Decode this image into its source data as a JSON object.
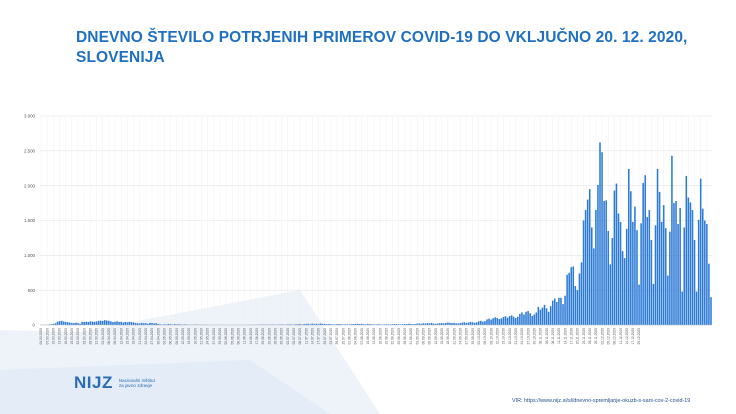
{
  "page": {
    "title": "DNEVNO ŠTEVILO POTRJENIH PRIMEROV COVID-19 DO VKLJUČNO 20. 12. 2020, SLOVENIJA"
  },
  "logo": {
    "mark": "NIJZ",
    "line1": "Nacionalni inštitut",
    "line2": "za javno zdravje"
  },
  "source": {
    "text": "VIR: https://www.nijz.si/sl/dnevno-spremljanje-okuzb-s-sars-cov-2-covid-19"
  },
  "colors": {
    "bar": "#2e7bd6",
    "title": "#1f6fc2",
    "grid": "#e3e3e3",
    "background_shape": "#eef3fa"
  },
  "chart_data": {
    "type": "bar",
    "title": "",
    "xlabel": "",
    "ylabel": "",
    "ylim": [
      0,
      3000
    ],
    "yticks": [
      0,
      500,
      1000,
      1500,
      2000,
      2500,
      3000
    ],
    "ytick_labels": [
      "0",
      "500",
      "1.000",
      "1.500",
      "2.000",
      "2.500",
      "3.000"
    ],
    "grid": true,
    "start_date": "2020-03-04",
    "xtick_labels": [
      "04.03.2020",
      "07.03.2020",
      "10.03.2020",
      "13.03.2020",
      "16.03.2020",
      "19.03.2020",
      "22.03.2020",
      "25.03.2020",
      "28.03.2020",
      "31.03.2020",
      "03.04.2020",
      "06.04.2020",
      "09.04.2020",
      "12.04.2020",
      "15.04.2020",
      "18.04.2020",
      "21.04.2020",
      "24.04.2020",
      "27.04.2020",
      "30.04.2020",
      "03.05.2020",
      "06.05.2020",
      "09.05.2020",
      "12.05.2020",
      "15.05.2020",
      "18.05.2020",
      "21.05.2020",
      "24.05.2020",
      "27.05.2020",
      "30.05.2020",
      "02.06.2020",
      "05.06.2020",
      "08.06.2020",
      "11.06.2020",
      "14.06.2020",
      "17.06.2020",
      "20.06.2020",
      "23.06.2020",
      "26.06.2020",
      "29.06.2020",
      "02.07.2020",
      "05.07.2020",
      "08.07.2020",
      "11.07.2020",
      "14.07.2020",
      "17.07.2020",
      "20.07.2020",
      "23.07.2020",
      "26.07.2020",
      "29.07.2020",
      "01.08.2020",
      "04.08.2020",
      "07.08.2020",
      "10.08.2020",
      "13.08.2020",
      "16.08.2020",
      "19.08.2020",
      "22.08.2020",
      "25.08.2020",
      "28.08.2020",
      "31.08.2020",
      "03.09.2020",
      "06.09.2020",
      "09.09.2020",
      "12.09.2020",
      "15.09.2020",
      "18.09.2020",
      "21.09.2020",
      "24.09.2020",
      "27.09.2020",
      "30.09.2020",
      "03.10.2020",
      "06.10.2020",
      "09.10.2020",
      "12.10.2020",
      "15.10.2020",
      "18.10.2020",
      "21.10.2020",
      "24.10.2020",
      "27.10.2020",
      "30.10.2020",
      "02.11.2020",
      "05.11.2020",
      "08.11.2020",
      "11.11.2020",
      "14.11.2020",
      "17.11.2020",
      "20.11.2020",
      "23.11.2020",
      "26.11.2020",
      "29.11.2020",
      "02.12.2020",
      "05.12.2020",
      "08.12.2020",
      "11.12.2020",
      "14.12.2020",
      "17.12.2020",
      "20.12.2020"
    ],
    "values": [
      1,
      2,
      2,
      2,
      9,
      10,
      15,
      25,
      46,
      56,
      60,
      50,
      45,
      40,
      35,
      30,
      27,
      34,
      28,
      18,
      45,
      43,
      48,
      44,
      53,
      48,
      46,
      50,
      60,
      62,
      58,
      70,
      64,
      60,
      52,
      42,
      46,
      53,
      44,
      46,
      35,
      44,
      38,
      46,
      40,
      37,
      28,
      25,
      23,
      30,
      25,
      26,
      17,
      30,
      28,
      24,
      26,
      15,
      10,
      5,
      12,
      9,
      14,
      11,
      8,
      13,
      9,
      12,
      8,
      7,
      9,
      6,
      3,
      5,
      4,
      6,
      5,
      3,
      2,
      4,
      2,
      3,
      1,
      2,
      1,
      0,
      2,
      1,
      2,
      1,
      0,
      1,
      0,
      1,
      0,
      1,
      2,
      1,
      0,
      1,
      2,
      1,
      3,
      2,
      4,
      3,
      5,
      4,
      6,
      5,
      4,
      3,
      5,
      6,
      4,
      3,
      7,
      8,
      6,
      4,
      9,
      10,
      7,
      5,
      11,
      12,
      15,
      8,
      14,
      16,
      18,
      12,
      20,
      15,
      17,
      14,
      22,
      18,
      16,
      14,
      15,
      12,
      10,
      9,
      13,
      14,
      12,
      8,
      11,
      10,
      9,
      12,
      14,
      16,
      18,
      15,
      17,
      12,
      10,
      14,
      13,
      11,
      9,
      8,
      12,
      10,
      7,
      9,
      11,
      10,
      8,
      12,
      14,
      13,
      10,
      9,
      12,
      15,
      14,
      18,
      16,
      12,
      15,
      20,
      22,
      18,
      25,
      22,
      28,
      25,
      30,
      20,
      18,
      22,
      26,
      28,
      24,
      30,
      35,
      32,
      28,
      30,
      25,
      22,
      28,
      35,
      40,
      30,
      36,
      44,
      40,
      32,
      38,
      52,
      60,
      48,
      55,
      80,
      90,
      78,
      98,
      110,
      100,
      86,
      95,
      115,
      125,
      105,
      128,
      140,
      120,
      100,
      118,
      160,
      180,
      150,
      190,
      200,
      170,
      130,
      150,
      180,
      260,
      220,
      250,
      290,
      240,
      190,
      270,
      350,
      380,
      330,
      390,
      390,
      300,
      420,
      720,
      750,
      830,
      840,
      560,
      500,
      740,
      900,
      1500,
      1650,
      1800,
      1950,
      1400,
      1100,
      1650,
      2010,
      2620,
      2480,
      1780,
      1790,
      1350,
      870,
      1250,
      1930,
      2030,
      1600,
      1480,
      1060,
      960,
      1380,
      2240,
      1920,
      1480,
      1700,
      1360,
      580,
      1460,
      2040,
      2150,
      1550,
      1650,
      1220,
      590,
      1430,
      2240,
      1910,
      1480,
      1720,
      1390,
      710,
      1340,
      2430,
      1750,
      1780,
      1450,
      1680,
      480,
      1400,
      2140,
      1830,
      1760,
      1650,
      1220,
      480,
      1510,
      2100,
      1670,
      1500,
      1450,
      880,
      400
    ]
  }
}
